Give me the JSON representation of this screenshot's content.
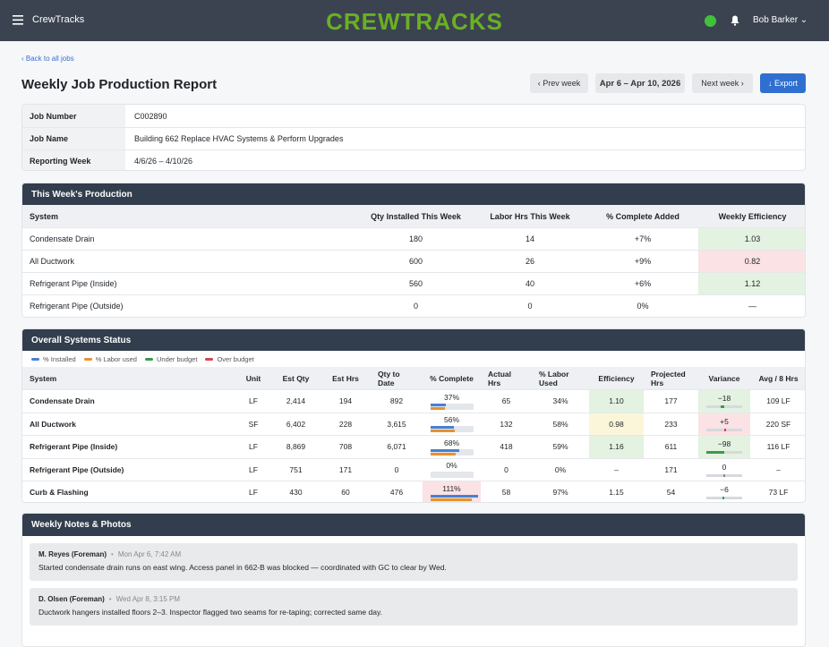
{
  "nav": {
    "brand": "CrewTracks",
    "logo": "CREWTRACKS",
    "user": "Bob Barker"
  },
  "back_link": "‹ Back to all jobs",
  "title": "Weekly Job Production Report",
  "controls": {
    "prev": "‹ Prev week",
    "range": "Apr 6 – Apr 10, 2026",
    "next": "Next week ›",
    "export": "↓ Export"
  },
  "job_info": [
    {
      "label": "Job Number",
      "value": "C002890"
    },
    {
      "label": "Job Name",
      "value": "Building 662 Replace HVAC Systems & Perform Upgrades"
    },
    {
      "label": "Reporting Week",
      "value": "4/6/26 – 4/10/26"
    }
  ],
  "this_week": {
    "title": "This Week's Production",
    "headers": [
      "System",
      "Qty Installed This Week",
      "Labor Hrs This Week",
      "% Complete Added",
      "Weekly Efficiency"
    ],
    "rows": [
      {
        "cells": [
          "Condensate Drain",
          180,
          14,
          "+7%",
          "1.03"
        ],
        "tint": "#e3f2e1"
      },
      {
        "cells": [
          "All Ductwork",
          600,
          26,
          "+9%",
          "0.82"
        ],
        "tint": "#fbe2e4"
      },
      {
        "cells": [
          "Refrigerant Pipe (Inside)",
          560,
          40,
          "+6%",
          "1.12"
        ],
        "tint": "#e3f2e1"
      },
      {
        "cells": [
          "Refrigerant Pipe (Outside)",
          0,
          0,
          "0%",
          "—"
        ]
      }
    ]
  },
  "overall": {
    "title": "Overall Systems Status",
    "legend": [
      {
        "label": "% Installed",
        "color": "#4a7fd4"
      },
      {
        "label": "% Labor used",
        "color": "#e8922d"
      },
      {
        "label": "Under budget",
        "color": "#3e9a4a"
      },
      {
        "label": "Over budget",
        "color": "#d9434e"
      }
    ],
    "headers": [
      "System",
      "Unit",
      "Est Qty",
      "Est Hrs",
      "Qty to Date",
      "% Complete",
      "Actual Hrs",
      "% Labor Used",
      "Efficiency",
      "Projected Hrs",
      "Variance",
      "Avg / 8 Hrs"
    ],
    "rows": [
      {
        "system": "Condensate Drain",
        "unit": "LF",
        "est_qty": "2,414",
        "est_hrs": 194,
        "qty_to_date": 892,
        "complete": 37,
        "complete_label": "37%",
        "actual_hrs": 65,
        "labor_used": 34,
        "labor_used_label": "34%",
        "efficiency": "1.10",
        "efficiency_tint": "#e3f2e1",
        "projected_hrs": 177,
        "variance": -18,
        "variance_label": "−18",
        "variance_tint": "#e3f2e1",
        "avg": "109 LF"
      },
      {
        "system": "All Ductwork",
        "unit": "SF",
        "est_qty": "6,402",
        "est_hrs": 228,
        "qty_to_date": "3,615",
        "complete": 56,
        "complete_label": "56%",
        "actual_hrs": 132,
        "labor_used": 58,
        "labor_used_label": "58%",
        "efficiency": "0.98",
        "efficiency_tint": "#fbf6d9",
        "projected_hrs": 233,
        "variance": 5,
        "variance_label": "+5",
        "variance_tint": "#fbe2e4",
        "avg": "220 SF"
      },
      {
        "system": "Refrigerant Pipe (Inside)",
        "unit": "LF",
        "est_qty": "8,869",
        "est_hrs": 708,
        "qty_to_date": "6,071",
        "complete": 68,
        "complete_label": "68%",
        "actual_hrs": 418,
        "labor_used": 59,
        "labor_used_label": "59%",
        "efficiency": "1.16",
        "efficiency_tint": "#e3f2e1",
        "projected_hrs": 611,
        "variance": -98,
        "variance_label": "−98",
        "variance_tint": "#e3f2e1",
        "avg": "116 LF"
      },
      {
        "system": "Refrigerant Pipe (Outside)",
        "unit": "LF",
        "est_qty": 751,
        "est_hrs": 171,
        "qty_to_date": 0,
        "complete": 0,
        "complete_label": "0%",
        "actual_hrs": 0,
        "labor_used": 0,
        "labor_used_label": "0%",
        "efficiency": "–",
        "projected_hrs": 171,
        "variance": 0,
        "avg": "–"
      },
      {
        "system": "Curb & Flashing",
        "unit": "LF",
        "est_qty": 430,
        "est_hrs": 60,
        "qty_to_date": 476,
        "complete": 111,
        "complete_label": "111%",
        "complete_tint": "#fbe2e4",
        "actual_hrs": 58,
        "labor_used": 97,
        "labor_used_label": "97%",
        "efficiency": "1.15",
        "projected_hrs": 54,
        "variance": -6,
        "variance_label": "−6",
        "avg": "73 LF"
      }
    ]
  },
  "notes": {
    "title": "Weekly Notes & Photos",
    "items": [
      {
        "author": "M. Reyes (Foreman)",
        "time": "Mon Apr 6, 7:42 AM",
        "text": "Started condensate drain runs on east wing. Access panel in 662-B was blocked — coordinated with GC to clear by Wed."
      },
      {
        "author": "D. Olsen (Foreman)",
        "time": "Wed Apr 8, 3:15 PM",
        "text": "Ductwork hangers installed floors 2–3. Inspector flagged two seams for re-taping; corrected same day."
      }
    ]
  }
}
